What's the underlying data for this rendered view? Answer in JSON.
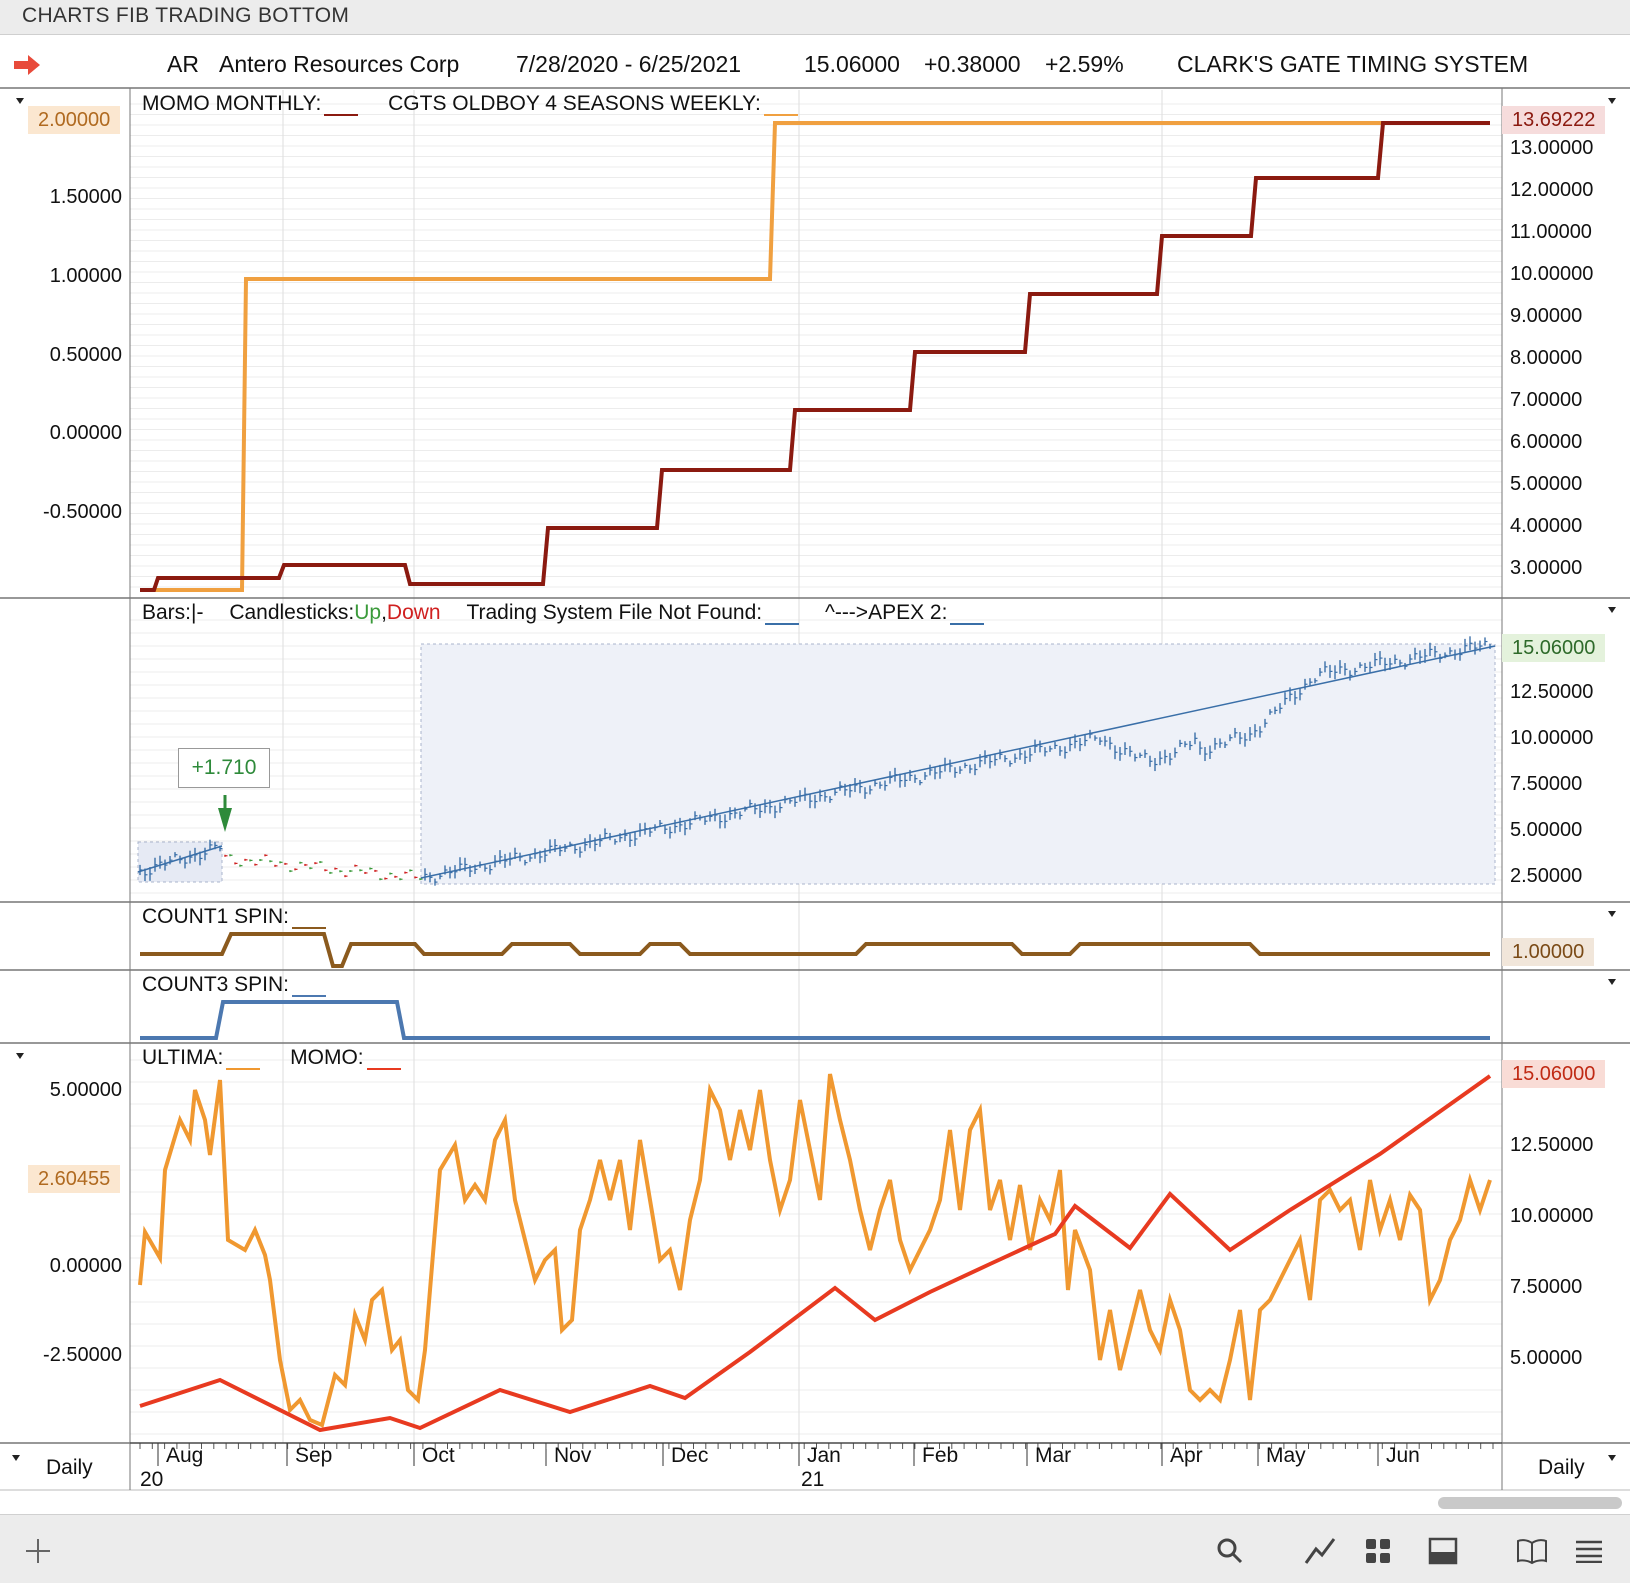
{
  "window": {
    "title": "CHARTS FIB TRADING BOTTOM"
  },
  "header": {
    "symbol": "AR",
    "name": "Antero Resources Corp",
    "date_range": "7/28/2020 - 6/25/2021",
    "price": "15.06000",
    "change": "+0.38000",
    "change_pct": "+2.59%",
    "system": "CLARK'S GATE TIMING SYSTEM"
  },
  "pane1": {
    "title1": "MOMO MONTHLY:",
    "title2": "CGTS OLDBOY 4 SEASONS WEEKLY:",
    "left_badge": "2.00000",
    "right_badge": "13.69222",
    "left_axis": [
      "1.50000",
      "1.00000",
      "0.50000",
      "0.00000",
      "-0.50000"
    ],
    "right_axis": [
      "13.00000",
      "12.00000",
      "11.00000",
      "10.00000",
      "9.00000",
      "8.00000",
      "7.00000",
      "6.00000",
      "5.00000",
      "4.00000",
      "3.00000"
    ],
    "colors": {
      "orange": "#f0a040",
      "darkred": "#8b1a10"
    }
  },
  "pane2": {
    "title_bars": "Bars:",
    "title_bars_mark": "|-",
    "title_candles": "Candlesticks:",
    "up": "Up",
    "comma": ",",
    "down": "Down",
    "title_tsf": "Trading System File Not Found:",
    "title_apex": "^--->APEX 2:",
    "callout": "+1.710",
    "right_badge": "15.06000",
    "right_axis": [
      "12.50000",
      "10.00000",
      "7.50000",
      "5.00000",
      "2.50000"
    ],
    "colors": {
      "up": "#3a9a3a",
      "down": "#d02020",
      "bar": "#3a6fa8"
    }
  },
  "pane3": {
    "title": "COUNT1 SPIN:",
    "right_badge": "1.00000",
    "color": "#8b5a1e"
  },
  "pane4": {
    "title": "COUNT3 SPIN:",
    "color": "#4c78b0"
  },
  "pane5": {
    "title1": "ULTIMA:",
    "title2": "MOMO:",
    "left_badge": "2.60455",
    "right_badge": "15.06000",
    "left_axis": [
      "5.00000",
      "0.00000",
      "-2.50000"
    ],
    "right_axis": [
      "12.50000",
      "10.00000",
      "7.50000",
      "5.00000"
    ],
    "colors": {
      "ultima": "#f09830",
      "momo": "#e83a20"
    }
  },
  "xaxis": {
    "months": [
      "Aug",
      "Sep",
      "Oct",
      "Nov",
      "Dec",
      "Jan",
      "Feb",
      "Mar",
      "Apr",
      "May",
      "Jun"
    ],
    "year_2020": "20",
    "year_2021": "21",
    "left_period": "Daily",
    "right_period": "Daily"
  },
  "toolbar": {
    "icons": [
      "plus-icon",
      "search-icon",
      "line-chart-icon",
      "grid-icon",
      "panel-icon",
      "book-icon",
      "menu-icon"
    ]
  }
}
